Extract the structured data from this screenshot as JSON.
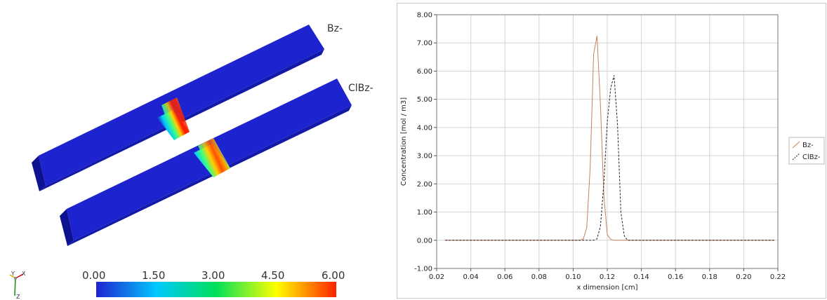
{
  "scene": {
    "bar_labels": [
      "Bz-",
      "ClBz-"
    ],
    "colorbar": {
      "ticks": [
        "0.00",
        "1.50",
        "3.00",
        "4.50",
        "6.00"
      ],
      "colors": [
        "#1e23d0",
        "#00c8ff",
        "#00e05a",
        "#ffff00",
        "#ff2200"
      ]
    },
    "orientation_axes": [
      "Y",
      "X",
      "Z"
    ],
    "colors": {
      "bar": "#1e23d0",
      "bar_side": "#0d1290",
      "bar_top": "#2a33e6"
    }
  },
  "chart_data": {
    "type": "line",
    "xlabel": "x dimension [cm]",
    "ylabel": "Concentration [mol / m3]",
    "xlim": [
      0.02,
      0.22
    ],
    "ylim": [
      -1.0,
      8.0
    ],
    "xticks": [
      0.02,
      0.04,
      0.06,
      0.08,
      0.1,
      0.12,
      0.14,
      0.16,
      0.18,
      0.2,
      0.22
    ],
    "yticks": [
      -1.0,
      0.0,
      1.0,
      2.0,
      3.0,
      4.0,
      5.0,
      6.0,
      7.0,
      8.0
    ],
    "grid": true,
    "legend_position": "right",
    "series": [
      {
        "name": "Bz-",
        "color": "#c8805a",
        "dash": "solid",
        "x": [
          0.025,
          0.104,
          0.106,
          0.108,
          0.11,
          0.112,
          0.114,
          0.116,
          0.118,
          0.12,
          0.122,
          0.124,
          0.218
        ],
        "y": [
          0.0,
          0.0,
          0.05,
          0.45,
          2.6,
          6.6,
          7.25,
          4.8,
          1.6,
          0.2,
          0.03,
          0.0,
          0.0
        ]
      },
      {
        "name": "ClBz-",
        "color": "#222222",
        "dash": "dashed",
        "x": [
          0.025,
          0.112,
          0.114,
          0.116,
          0.118,
          0.12,
          0.122,
          0.124,
          0.126,
          0.128,
          0.13,
          0.132,
          0.218
        ],
        "y": [
          0.0,
          0.0,
          0.05,
          0.5,
          2.0,
          4.2,
          5.4,
          5.85,
          4.1,
          1.0,
          0.15,
          0.0,
          0.0
        ]
      }
    ]
  }
}
